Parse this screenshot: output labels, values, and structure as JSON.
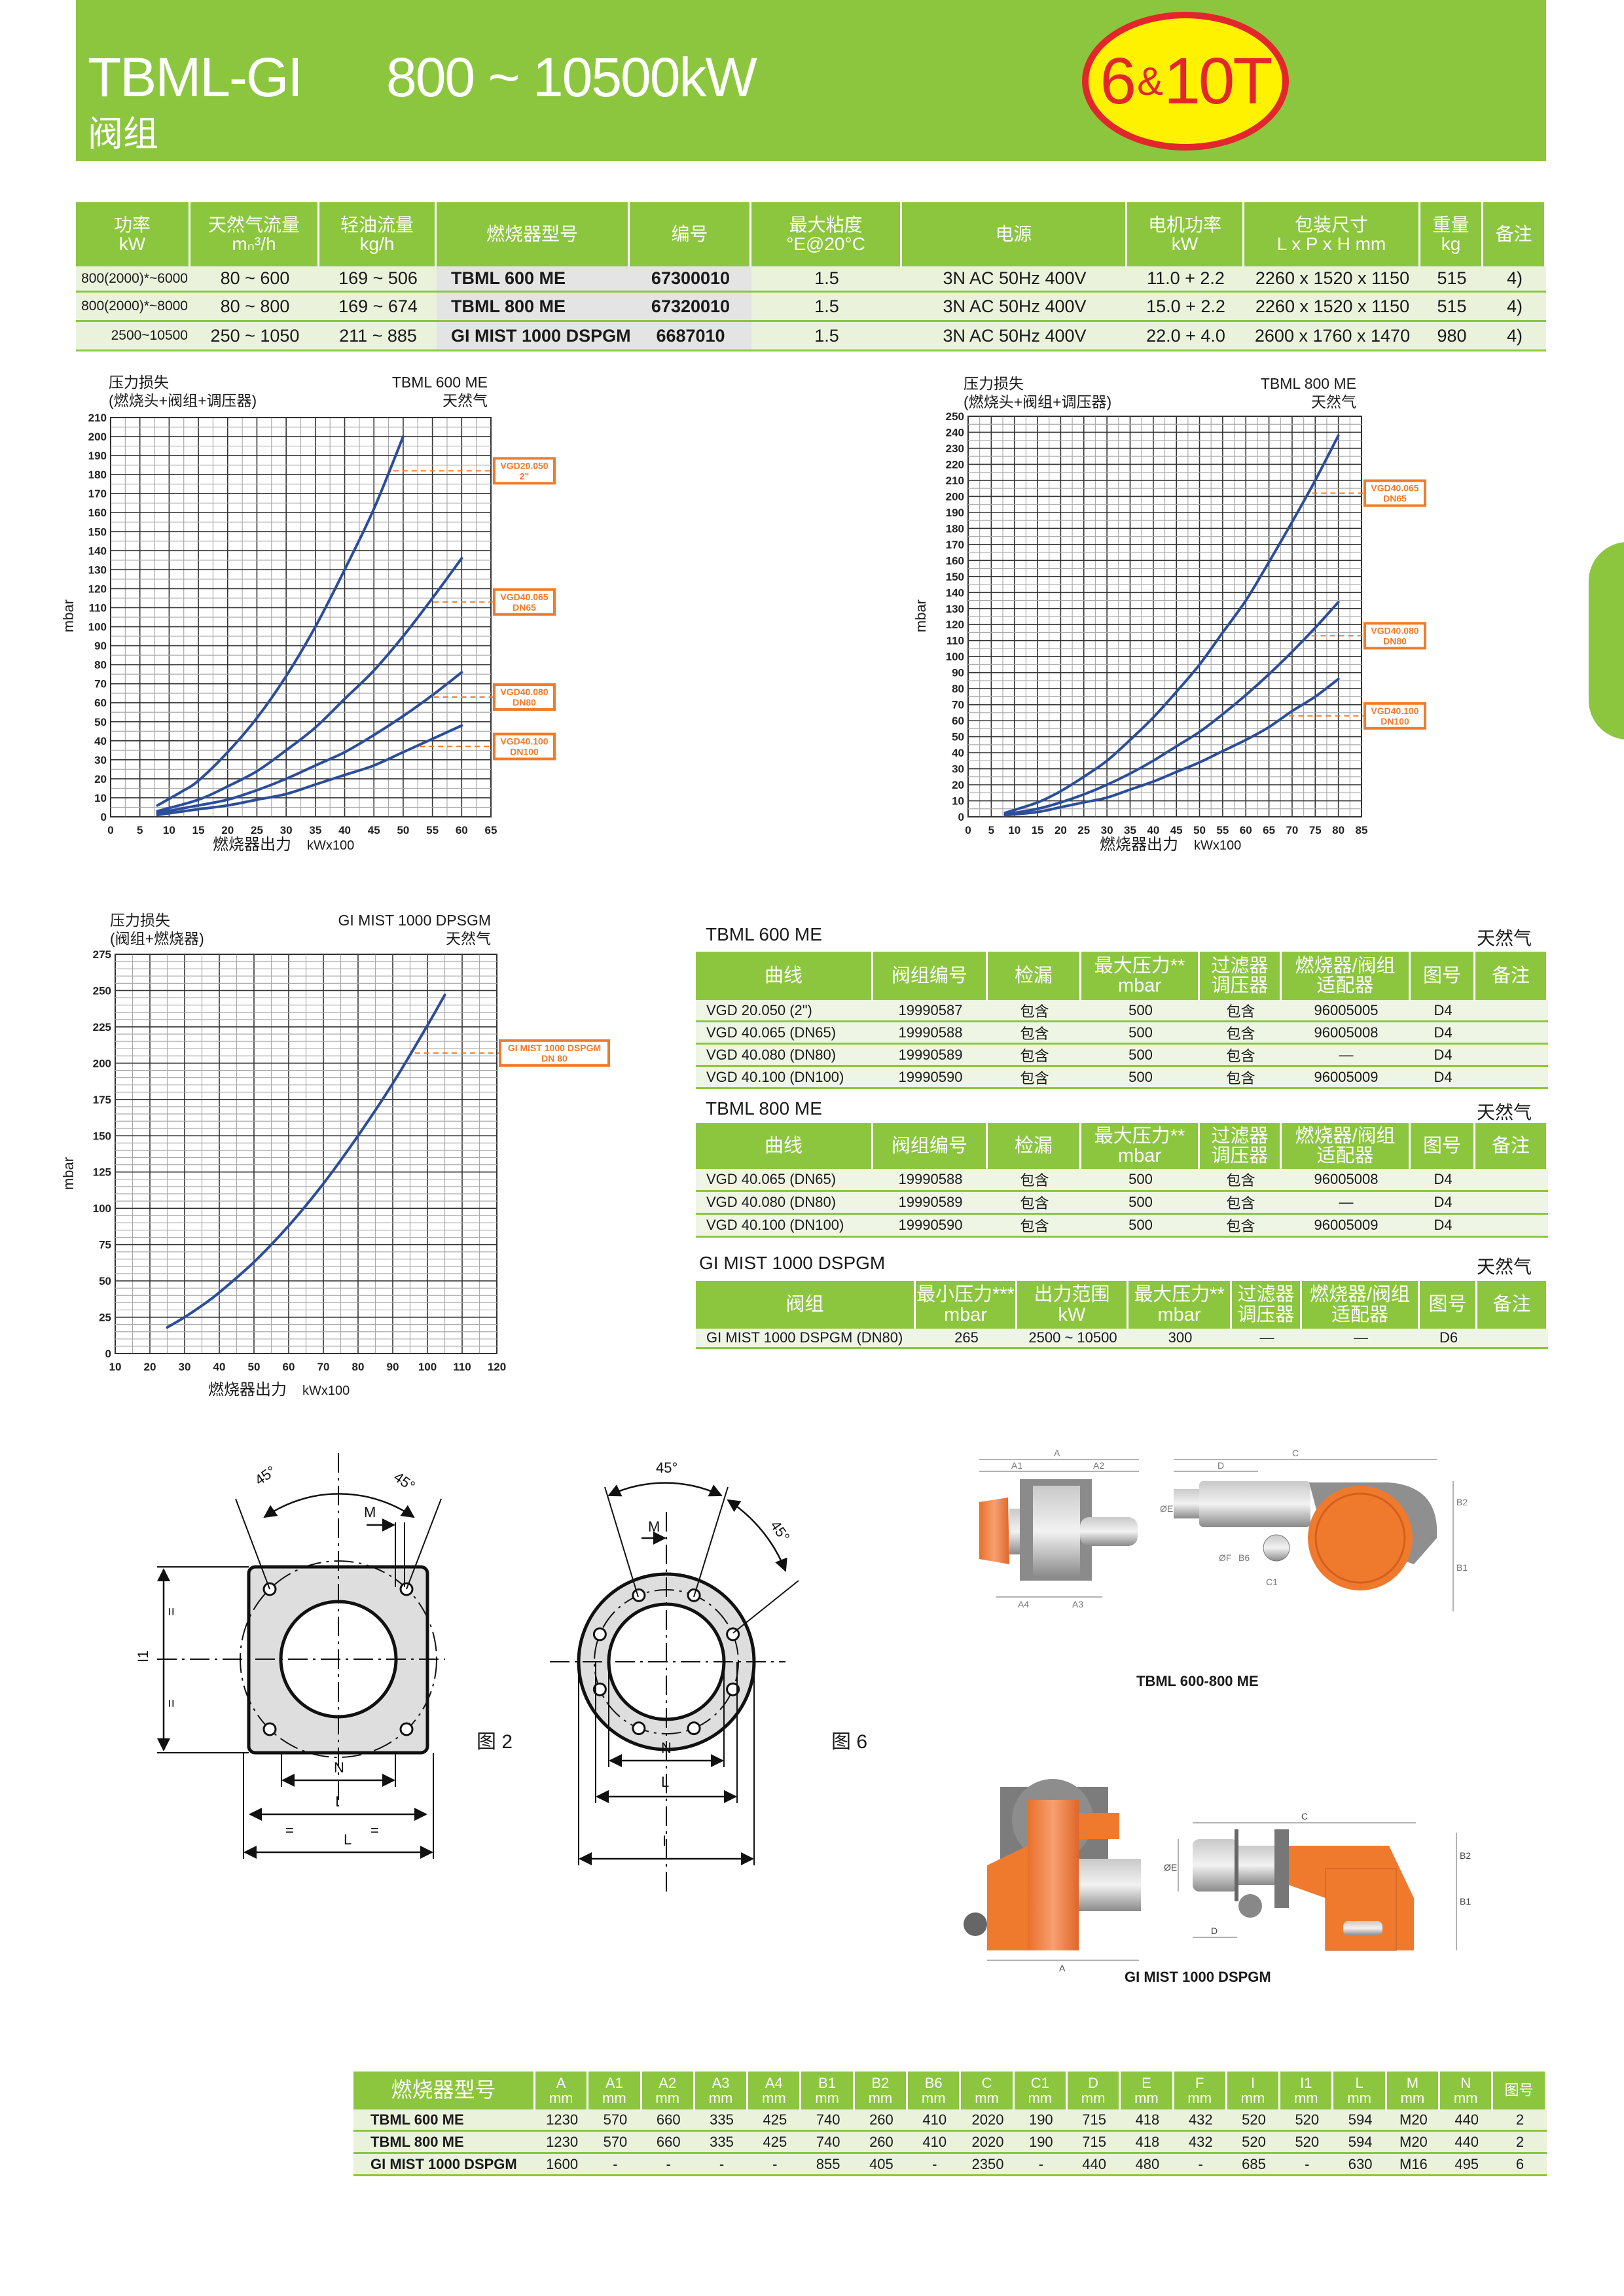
{
  "header": {
    "title": "TBML-GI",
    "range": "800  ~  10500kW",
    "subtitle": "阀组",
    "badge_main": "6",
    "badge_amp": "&",
    "badge_rest": "10T"
  },
  "colors": {
    "brand_green": "#8cc63f",
    "row_bg": "#eaf2dc",
    "curve": "#2b4d9b",
    "annotation": "#f07b2a",
    "badge_fill": "#fff200",
    "badge_ring": "#e3262b"
  },
  "spec_table": {
    "headers": [
      "功率\nkW",
      "天然气流量\nmₙ³/h",
      "轻油流量\nkg/h",
      "燃烧器型号",
      "编号",
      "最大粘度\n°E@20°C",
      "电源",
      "电机功率\nkW",
      "包装尺寸\nL x P x H  mm",
      "重量\nkg",
      "备注"
    ],
    "rows": [
      [
        "800(2000)*~6000",
        "80 ~ 600",
        "169 ~ 506",
        "TBML  600 ME",
        "67300010",
        "1.5",
        "3N AC 50Hz 400V",
        "11.0 + 2.2",
        "2260 x 1520 x 1150",
        "515",
        "4)"
      ],
      [
        "800(2000)*~8000",
        "80 ~ 800",
        "169 ~ 674",
        "TBML  800 ME",
        "67320010",
        "1.5",
        "3N AC 50Hz 400V",
        "15.0 + 2.2",
        "2260 x 1520 x 1150",
        "515",
        "4)"
      ],
      [
        "2500~10500",
        "250 ~ 1050",
        "211 ~ 885",
        "GI MIST 1000 DSPGM",
        "6687010",
        "1.5",
        "3N AC 50Hz 400V",
        "22.0 + 4.0",
        "2600 x 1760 x 1470",
        "980",
        "4)"
      ]
    ]
  },
  "chart_data": [
    {
      "type": "line",
      "title": "TBML 600 ME",
      "subtitle": "天然气",
      "caption_lines": [
        "压力损失",
        "(燃烧头+阀组+调压器)"
      ],
      "ylabel": "mbar",
      "xlabel": "燃烧器出力",
      "xunit": "kWx100",
      "xlim": [
        0,
        65
      ],
      "ylim": [
        0,
        210
      ],
      "xtick_step": 5,
      "ytick_step": 10,
      "grid": true,
      "series": [
        {
          "x": [
            8,
            12,
            15,
            20,
            25,
            30,
            35,
            40,
            45,
            50
          ],
          "y": [
            6,
            13,
            19,
            34,
            52,
            74,
            100,
            130,
            162,
            200
          ]
        },
        {
          "x": [
            8,
            15,
            20,
            25,
            30,
            35,
            40,
            45,
            50,
            55,
            60
          ],
          "y": [
            3,
            9,
            16,
            24,
            35,
            47,
            62,
            77,
            95,
            115,
            136
          ]
        },
        {
          "x": [
            8,
            15,
            20,
            25,
            30,
            35,
            40,
            45,
            50,
            55,
            60
          ],
          "y": [
            2,
            6,
            9,
            14,
            20,
            27,
            34,
            43,
            53,
            64,
            76
          ]
        },
        {
          "x": [
            8,
            15,
            20,
            25,
            30,
            35,
            40,
            45,
            50,
            55,
            60
          ],
          "y": [
            1,
            4,
            6,
            9,
            12,
            17,
            22,
            27,
            34,
            41,
            48
          ]
        }
      ],
      "annotations": [
        {
          "series": 0,
          "y": 182,
          "label": [
            "VGD20.050",
            "2\""
          ]
        },
        {
          "series": 1,
          "y": 113,
          "label": [
            "VGD40.065",
            "DN65"
          ]
        },
        {
          "series": 2,
          "y": 63,
          "label": [
            "VGD40.080",
            "DN80"
          ]
        },
        {
          "series": 3,
          "y": 37,
          "label": [
            "VGD40.100",
            "DN100"
          ]
        }
      ]
    },
    {
      "type": "line",
      "title": "TBML 800 ME",
      "subtitle": "天然气",
      "caption_lines": [
        "压力损失",
        "(燃烧头+阀组+调压器)"
      ],
      "ylabel": "mbar",
      "xlabel": "燃烧器出力",
      "xunit": "kWx100",
      "xlim": [
        0,
        85
      ],
      "ylim": [
        0,
        250
      ],
      "xtick_step": 5,
      "ytick_step": 10,
      "grid": true,
      "series": [
        {
          "x": [
            8,
            15,
            20,
            25,
            30,
            35,
            40,
            45,
            50,
            55,
            60,
            65,
            70,
            75,
            80
          ],
          "y": [
            2.5,
            9,
            16,
            25,
            35,
            48,
            62,
            78,
            95,
            115,
            135,
            159,
            184,
            210,
            238
          ]
        },
        {
          "x": [
            8,
            15,
            20,
            25,
            30,
            35,
            40,
            45,
            50,
            55,
            60,
            65,
            70,
            75,
            80
          ],
          "y": [
            1.5,
            5,
            9,
            14,
            20,
            27,
            35,
            44,
            53,
            64,
            76,
            89,
            103,
            118,
            134
          ]
        },
        {
          "x": [
            8,
            15,
            20,
            25,
            30,
            35,
            40,
            45,
            50,
            55,
            60,
            65,
            70,
            75,
            80
          ],
          "y": [
            1,
            3,
            6,
            9,
            12,
            17,
            22,
            28,
            34,
            41,
            48,
            56,
            66,
            75,
            86
          ]
        }
      ],
      "annotations": [
        {
          "series": 0,
          "y": 202,
          "label": [
            "VGD40.065",
            "DN65"
          ]
        },
        {
          "series": 1,
          "y": 113,
          "label": [
            "VGD40.080",
            "DN80"
          ]
        },
        {
          "series": 2,
          "y": 63,
          "label": [
            "VGD40.100",
            "DN100"
          ]
        }
      ]
    },
    {
      "type": "line",
      "title": "GI MIST 1000 DPSGM",
      "subtitle": "天然气",
      "caption_lines": [
        "压力损失",
        "(阀组+燃烧器)"
      ],
      "ylabel": "mbar",
      "xlabel": "燃烧器出力",
      "xunit": "kWx100",
      "xlim": [
        10,
        120
      ],
      "ylim": [
        0,
        275
      ],
      "xtick_step": 10,
      "ytick_step": 25,
      "grid": true,
      "series": [
        {
          "x": [
            25,
            30,
            35,
            40,
            50,
            60,
            70,
            80,
            90,
            100,
            105
          ],
          "y": [
            18,
            25,
            33,
            42,
            63,
            88,
            117,
            150,
            186,
            226,
            247
          ]
        }
      ],
      "annotations": [
        {
          "series": 0,
          "y": 207,
          "label": [
            "GI MIST 1000 DSPGM",
            "DN 80"
          ]
        }
      ]
    }
  ],
  "valve_tables": [
    {
      "title": "TBML  600 ME",
      "gas": "天然气",
      "headers": [
        "曲线",
        "阀组编号",
        "检漏",
        "最大压力**\nmbar",
        "过滤器\n调压器",
        "燃烧器/阀组\n适配器",
        "图号",
        "备注"
      ],
      "rows": [
        [
          "VGD 20.050    (2\")",
          "19990587",
          "包含",
          "500",
          "包含",
          "96005005",
          "D4",
          ""
        ],
        [
          "VGD 40.065    (DN65)",
          "19990588",
          "包含",
          "500",
          "包含",
          "96005008",
          "D4",
          ""
        ],
        [
          "VGD 40.080    (DN80)",
          "19990589",
          "包含",
          "500",
          "包含",
          "—",
          "D4",
          ""
        ],
        [
          "VGD 40.100    (DN100)",
          "19990590",
          "包含",
          "500",
          "包含",
          "96005009",
          "D4",
          ""
        ]
      ]
    },
    {
      "title": "TBML 800 ME",
      "gas": "天然气",
      "headers": [
        "曲线",
        "阀组编号",
        "检漏",
        "最大压力**\nmbar",
        "过滤器\n调压器",
        "燃烧器/阀组\n适配器",
        "图号",
        "备注"
      ],
      "rows": [
        [
          "VGD 40.065    (DN65)",
          "19990588",
          "包含",
          "500",
          "包含",
          "96005008",
          "D4",
          ""
        ],
        [
          "VGD 40.080    (DN80)",
          "19990589",
          "包含",
          "500",
          "包含",
          "—",
          "D4",
          ""
        ],
        [
          "VGD 40.100    (DN100)",
          "19990590",
          "包含",
          "500",
          "包含",
          "96005009",
          "D4",
          ""
        ]
      ]
    },
    {
      "title": "GI MIST 1000 DSPGM",
      "gas": "天然气",
      "headers": [
        "阀组",
        "最小压力***\nmbar",
        "出力范围\nkW",
        "最大压力**\nmbar",
        "过滤器\n调压器",
        "燃烧器/阀组\n适配器",
        "图号",
        "备注"
      ],
      "rows": [
        [
          "GI MIST 1000 DSPGM  (DN80)",
          "265",
          "2500  ~  10500",
          "300",
          "—",
          "—",
          "D6",
          ""
        ]
      ]
    }
  ],
  "drawings": {
    "fig2_label": "图 2",
    "fig6_label": "图 6",
    "angle": "45°",
    "m": "M",
    "n": "N",
    "i": "I",
    "l": "L",
    "l1": "I1",
    "eq": "="
  },
  "photos": {
    "caption_top": "TBML 600-800 ME",
    "caption_bottom": "GI MIST 1000 DSPGM",
    "top_dims": [
      "A",
      "A1",
      "A2",
      "A4",
      "A3",
      "C",
      "D",
      "ØE",
      "B2",
      "B1",
      "C1",
      "ØF",
      "B6"
    ],
    "bottom_dims": [
      "C",
      "ØE",
      "D",
      "A",
      "B2",
      "B1"
    ]
  },
  "dim_table": {
    "headers": [
      "燃烧器型号",
      "A\nmm",
      "A1\nmm",
      "A2\nmm",
      "A3\nmm",
      "A4\nmm",
      "B1\nmm",
      "B2\nmm",
      "B6\nmm",
      "C\nmm",
      "C1\nmm",
      "D\nmm",
      "E\nmm",
      "F\nmm",
      "I\nmm",
      "I1\nmm",
      "L\nmm",
      "M\nmm",
      "N\nmm",
      "图号"
    ],
    "rows": [
      [
        "TBML 600 ME",
        "1230",
        "570",
        "660",
        "335",
        "425",
        "740",
        "260",
        "410",
        "2020",
        "190",
        "715",
        "418",
        "432",
        "520",
        "520",
        "594",
        "M20",
        "440",
        "2"
      ],
      [
        "TBML 800 ME",
        "1230",
        "570",
        "660",
        "335",
        "425",
        "740",
        "260",
        "410",
        "2020",
        "190",
        "715",
        "418",
        "432",
        "520",
        "520",
        "594",
        "M20",
        "440",
        "2"
      ],
      [
        "GI MIST 1000 DSPGM",
        "1600",
        "-",
        "-",
        "-",
        "-",
        "855",
        "405",
        "-",
        "2350",
        "-",
        "440",
        "480",
        "-",
        "685",
        "-",
        "630",
        "M16",
        "495",
        "6"
      ]
    ]
  }
}
